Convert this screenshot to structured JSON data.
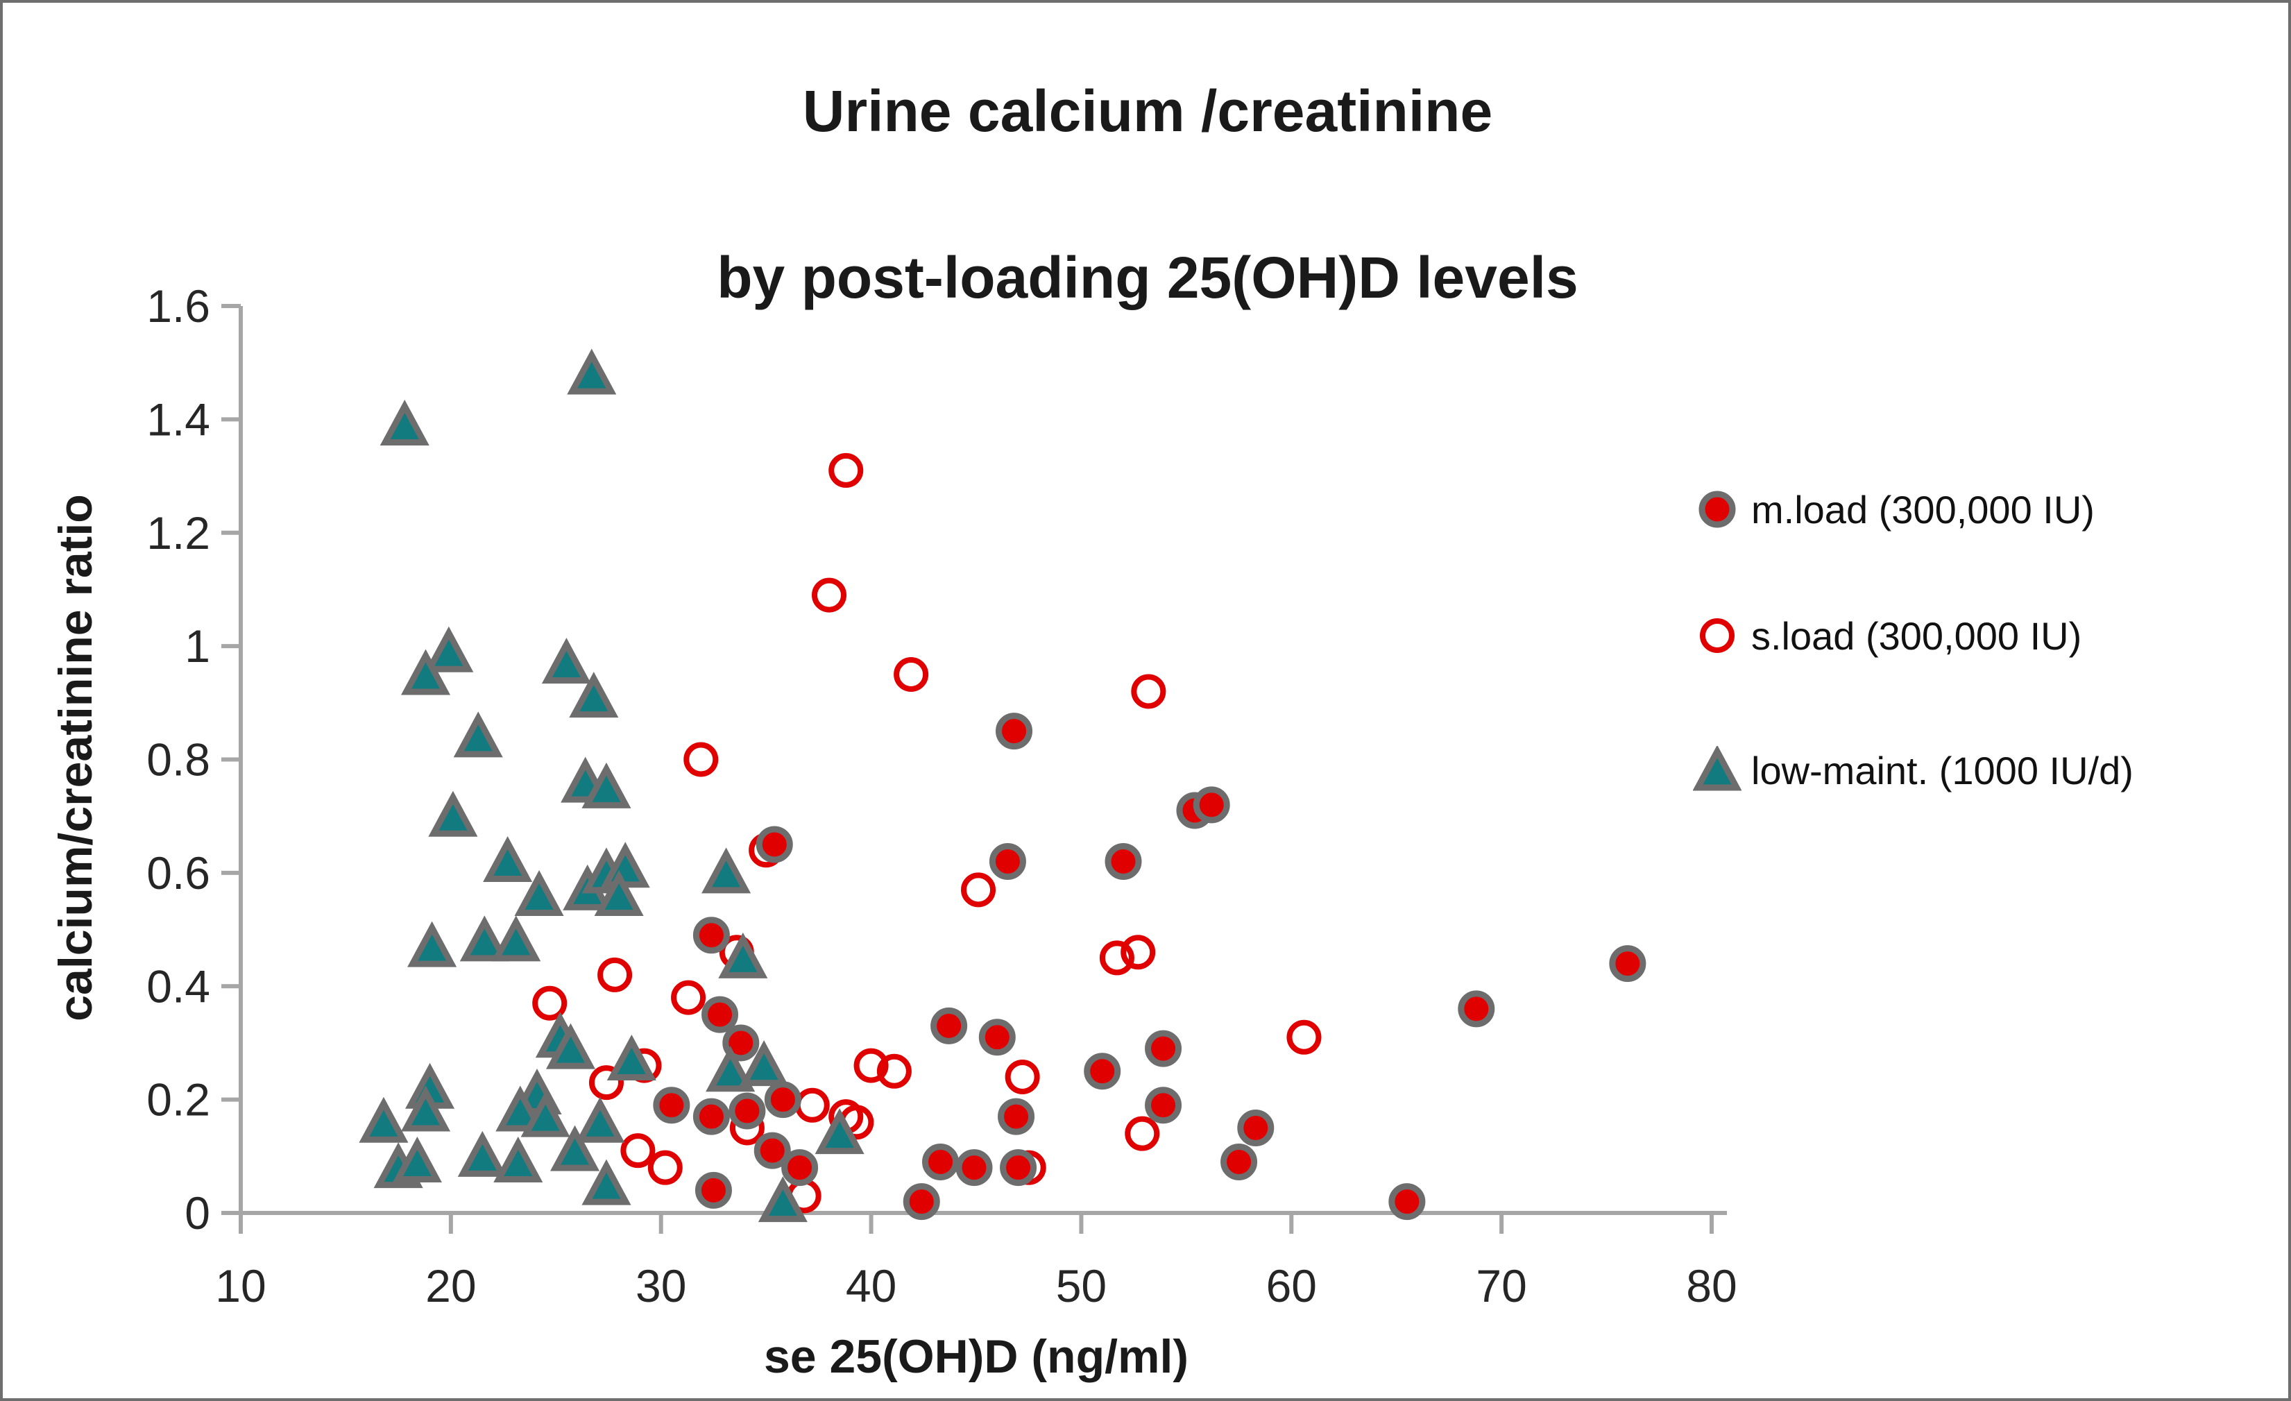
{
  "chart_data": {
    "type": "scatter",
    "title_lines": [
      "Urine calcium /creatinine",
      "by post-loading 25(OH)D levels"
    ],
    "xlabel": "se 25(OH)D (ng/ml)",
    "ylabel": "calcium/creatinine ratio",
    "xlim": [
      10,
      80
    ],
    "ylim": [
      0,
      1.6
    ],
    "x_ticks": [
      "10",
      "20",
      "30",
      "40",
      "50",
      "60",
      "70",
      "80"
    ],
    "y_ticks": [
      "0",
      "0.2",
      "0.4",
      "0.6",
      "0.8",
      "1",
      "1.2",
      "1.4",
      "1.6"
    ],
    "grid": "off",
    "legend_position": "right",
    "axis_color": "#a6a6a6",
    "text_color": "#262626",
    "series": [
      {
        "name": "m.load (300,000 IU)",
        "marker": "filled-circle",
        "fill": "#e10000",
        "stroke": "#6d6d6d",
        "points": [
          [
            46.8,
            0.85
          ],
          [
            55.4,
            0.71
          ],
          [
            56.2,
            0.72
          ],
          [
            52.0,
            0.62
          ],
          [
            46.5,
            0.62
          ],
          [
            35.4,
            0.65
          ],
          [
            32.4,
            0.49
          ],
          [
            32.8,
            0.35
          ],
          [
            33.8,
            0.3
          ],
          [
            43.7,
            0.33
          ],
          [
            46.0,
            0.31
          ],
          [
            51.0,
            0.25
          ],
          [
            53.9,
            0.29
          ],
          [
            30.5,
            0.19
          ],
          [
            32.4,
            0.17
          ],
          [
            34.1,
            0.18
          ],
          [
            35.8,
            0.2
          ],
          [
            46.9,
            0.17
          ],
          [
            53.9,
            0.19
          ],
          [
            58.3,
            0.15
          ],
          [
            35.3,
            0.11
          ],
          [
            36.6,
            0.08
          ],
          [
            43.3,
            0.09
          ],
          [
            44.9,
            0.08
          ],
          [
            47.0,
            0.08
          ],
          [
            57.5,
            0.09
          ],
          [
            32.5,
            0.04
          ],
          [
            42.4,
            0.02
          ],
          [
            65.5,
            0.02
          ],
          [
            68.8,
            0.36
          ],
          [
            76.0,
            0.44
          ]
        ]
      },
      {
        "name": "s.load (300,000 IU)",
        "marker": "open-circle",
        "fill": "none",
        "stroke": "#e10000",
        "points": [
          [
            38.8,
            1.31
          ],
          [
            38.0,
            1.09
          ],
          [
            41.9,
            0.95
          ],
          [
            53.2,
            0.92
          ],
          [
            31.9,
            0.8
          ],
          [
            35.0,
            0.64
          ],
          [
            45.1,
            0.57
          ],
          [
            51.7,
            0.45
          ],
          [
            52.7,
            0.46
          ],
          [
            33.6,
            0.46
          ],
          [
            27.8,
            0.42
          ],
          [
            24.7,
            0.37
          ],
          [
            31.3,
            0.38
          ],
          [
            40.0,
            0.26
          ],
          [
            41.1,
            0.25
          ],
          [
            47.2,
            0.24
          ],
          [
            60.6,
            0.31
          ],
          [
            27.4,
            0.23
          ],
          [
            29.2,
            0.26
          ],
          [
            37.2,
            0.19
          ],
          [
            38.8,
            0.17
          ],
          [
            39.3,
            0.16
          ],
          [
            34.1,
            0.15
          ],
          [
            52.9,
            0.14
          ],
          [
            28.9,
            0.11
          ],
          [
            30.2,
            0.08
          ],
          [
            47.5,
            0.08
          ],
          [
            36.8,
            0.03
          ]
        ]
      },
      {
        "name": "low-maint. (1000 IU/d)",
        "marker": "triangle",
        "fill": "#117b80",
        "stroke": "#6d6d6d",
        "points": [
          [
            17.8,
            1.39
          ],
          [
            26.7,
            1.48
          ],
          [
            19.9,
            0.99
          ],
          [
            18.8,
            0.95
          ],
          [
            25.5,
            0.97
          ],
          [
            26.8,
            0.91
          ],
          [
            21.3,
            0.84
          ],
          [
            20.1,
            0.7
          ],
          [
            26.4,
            0.76
          ],
          [
            27.4,
            0.75
          ],
          [
            22.7,
            0.62
          ],
          [
            24.2,
            0.56
          ],
          [
            26.5,
            0.57
          ],
          [
            27.4,
            0.6
          ],
          [
            28.3,
            0.61
          ],
          [
            28.0,
            0.56
          ],
          [
            33.1,
            0.6
          ],
          [
            19.1,
            0.47
          ],
          [
            21.6,
            0.48
          ],
          [
            23.1,
            0.48
          ],
          [
            33.9,
            0.45
          ],
          [
            28.6,
            0.27
          ],
          [
            25.2,
            0.31
          ],
          [
            25.7,
            0.29
          ],
          [
            24.1,
            0.21
          ],
          [
            23.3,
            0.18
          ],
          [
            24.5,
            0.17
          ],
          [
            33.3,
            0.25
          ],
          [
            34.9,
            0.26
          ],
          [
            19.0,
            0.22
          ],
          [
            18.8,
            0.18
          ],
          [
            16.8,
            0.16
          ],
          [
            27.1,
            0.16
          ],
          [
            38.5,
            0.14
          ],
          [
            21.5,
            0.1
          ],
          [
            23.2,
            0.09
          ],
          [
            25.9,
            0.11
          ],
          [
            17.5,
            0.08
          ],
          [
            18.4,
            0.09
          ],
          [
            27.4,
            0.05
          ],
          [
            35.8,
            0.02
          ]
        ]
      }
    ]
  }
}
